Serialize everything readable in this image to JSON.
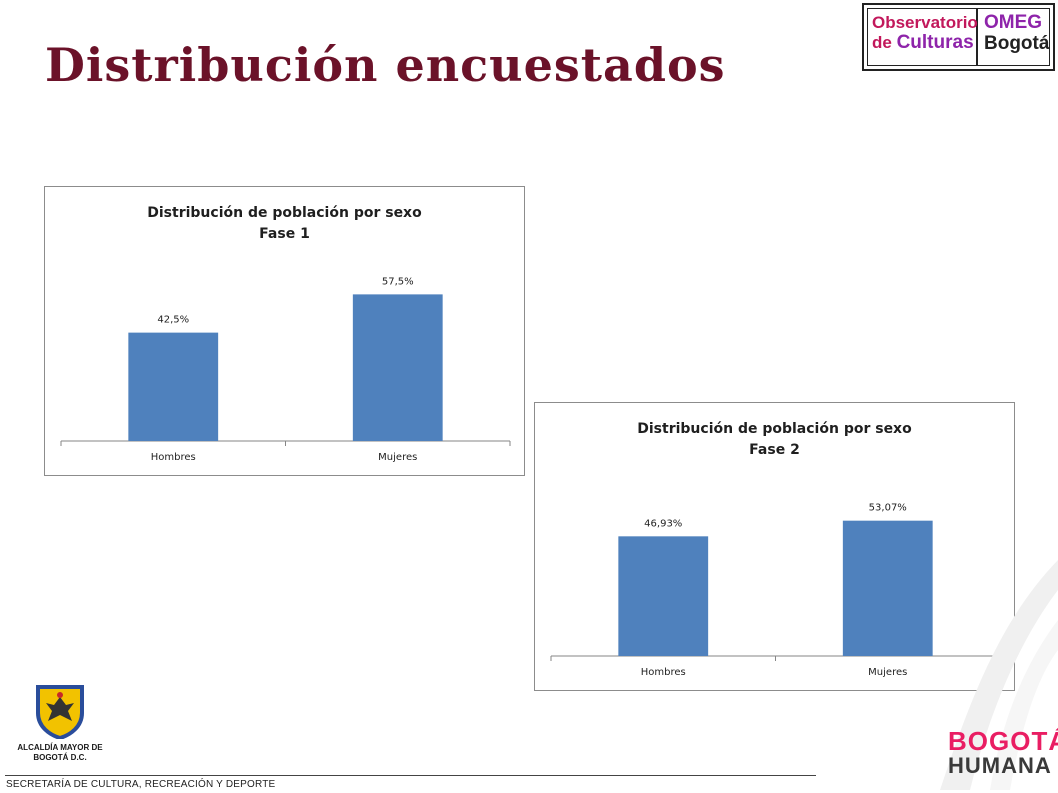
{
  "slide": {
    "title": "Distribución encuestados",
    "footer": "SECRETARÍA DE CULTURA, RECREACIÓN Y DEPORTE"
  },
  "logos": {
    "omeg": {
      "line1": "Observatorio",
      "line2_a": "de",
      "line2_b": "Culturas",
      "right1": "OMEG",
      "right2": "Bogotá"
    },
    "alcaldia": "ALCALDÍA MAYOR DE BOGOTÁ D.C.",
    "bogota_humana": {
      "line1": "BOGOTÁ",
      "line2": "HUMANA"
    }
  },
  "colors": {
    "title": "#6b1229",
    "bar": "#4f81bd",
    "axis": "#868686"
  },
  "chart_data": [
    {
      "type": "bar",
      "title": "Distribución de población por sexo",
      "subtitle": "Fase 1",
      "categories": [
        "Hombres",
        "Mujeres"
      ],
      "values": [
        42.5,
        57.5
      ],
      "data_labels": [
        "42,5%",
        "57,5%"
      ],
      "unit": "%",
      "ylim": [
        0,
        80
      ],
      "grid": false,
      "legend": "none"
    },
    {
      "type": "bar",
      "title": "Distribución de población por sexo",
      "subtitle": "Fase 2",
      "categories": [
        "Hombres",
        "Mujeres"
      ],
      "values": [
        46.93,
        53.07
      ],
      "data_labels": [
        "46,93%",
        "53,07%"
      ],
      "unit": "%",
      "ylim": [
        0,
        80
      ],
      "grid": false,
      "legend": "none"
    }
  ]
}
